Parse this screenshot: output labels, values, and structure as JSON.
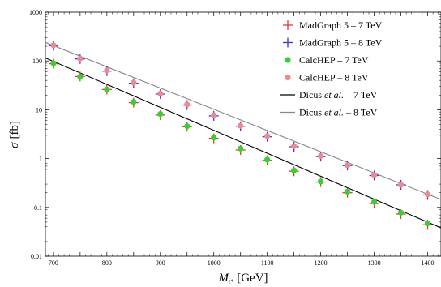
{
  "chart_data": {
    "type": "scatter",
    "title": "",
    "xlabel": {
      "base": "M",
      "sub": "t*",
      "unit": "[GeV]"
    },
    "ylabel": {
      "symbol": "σ",
      "unit": "[fb]"
    },
    "xlim": [
      685,
      1425
    ],
    "ylim": [
      0.01,
      1000
    ],
    "yscale": "log",
    "grid": false,
    "legend_position": "top-right",
    "x_ticks": [
      700,
      750,
      800,
      850,
      900,
      950,
      1000,
      1050,
      1100,
      1150,
      1200,
      1250,
      1300,
      1350,
      1400
    ],
    "x_tick_labels": [
      "700",
      "",
      "800",
      "",
      "900",
      "",
      "1000",
      "",
      "1100",
      "",
      "1200",
      "",
      "1300",
      "",
      "1400"
    ],
    "y_ticks": [
      0.01,
      0.1,
      1,
      10,
      100,
      1000
    ],
    "y_tick_labels": [
      "0.01",
      "0.1",
      "1",
      "10",
      "100",
      "1000"
    ],
    "x": [
      700,
      750,
      800,
      850,
      900,
      950,
      1000,
      1050,
      1100,
      1150,
      1200,
      1250,
      1300,
      1350,
      1400
    ],
    "series": [
      {
        "name": "MadGraph 5 – 7 TeV",
        "key": "mg7",
        "marker": "plus",
        "color": "#e8373a",
        "values": [
          88,
          48,
          26,
          14,
          7.8,
          4.5,
          2.6,
          1.5,
          0.92,
          0.55,
          0.33,
          0.2,
          0.12,
          0.073,
          0.044
        ]
      },
      {
        "name": "MadGraph 5 – 8 TeV",
        "key": "mg8",
        "marker": "plus",
        "color": "#3a36d9",
        "values": [
          205,
          110,
          62,
          35,
          21,
          12.5,
          7.5,
          4.6,
          2.8,
          1.75,
          1.1,
          0.72,
          0.45,
          0.29,
          0.18
        ]
      },
      {
        "name": "CalcHEP – 7 TeV",
        "key": "ch7",
        "marker": "dot",
        "color": "#2fd42f",
        "values": [
          90,
          48,
          26,
          14.5,
          8.2,
          4.6,
          2.7,
          1.6,
          0.95,
          0.57,
          0.34,
          0.21,
          0.13,
          0.078,
          0.047
        ]
      },
      {
        "name": "CalcHEP – 8 TeV",
        "key": "ch8",
        "marker": "dot",
        "color": "#f08a8a",
        "values": [
          210,
          112,
          64,
          36,
          21.5,
          12.8,
          7.7,
          4.7,
          2.9,
          1.8,
          1.13,
          0.73,
          0.46,
          0.29,
          0.185
        ]
      }
    ],
    "curves": [
      {
        "name": "Dicus et al. – 7 TeV",
        "name_main": "Dicus ",
        "name_italic": "et al.",
        "name_rest": " – 7 TeV",
        "color": "#000000",
        "x": [
          685,
          1425
        ],
        "y": [
          115,
          0.038
        ]
      },
      {
        "name": "Dicus et al. – 8 TeV",
        "name_main": "Dicus ",
        "name_italic": "et al.",
        "name_rest": " – 8 TeV",
        "color": "#888888",
        "x": [
          685,
          1425
        ],
        "y": [
          240,
          0.145
        ]
      }
    ]
  }
}
